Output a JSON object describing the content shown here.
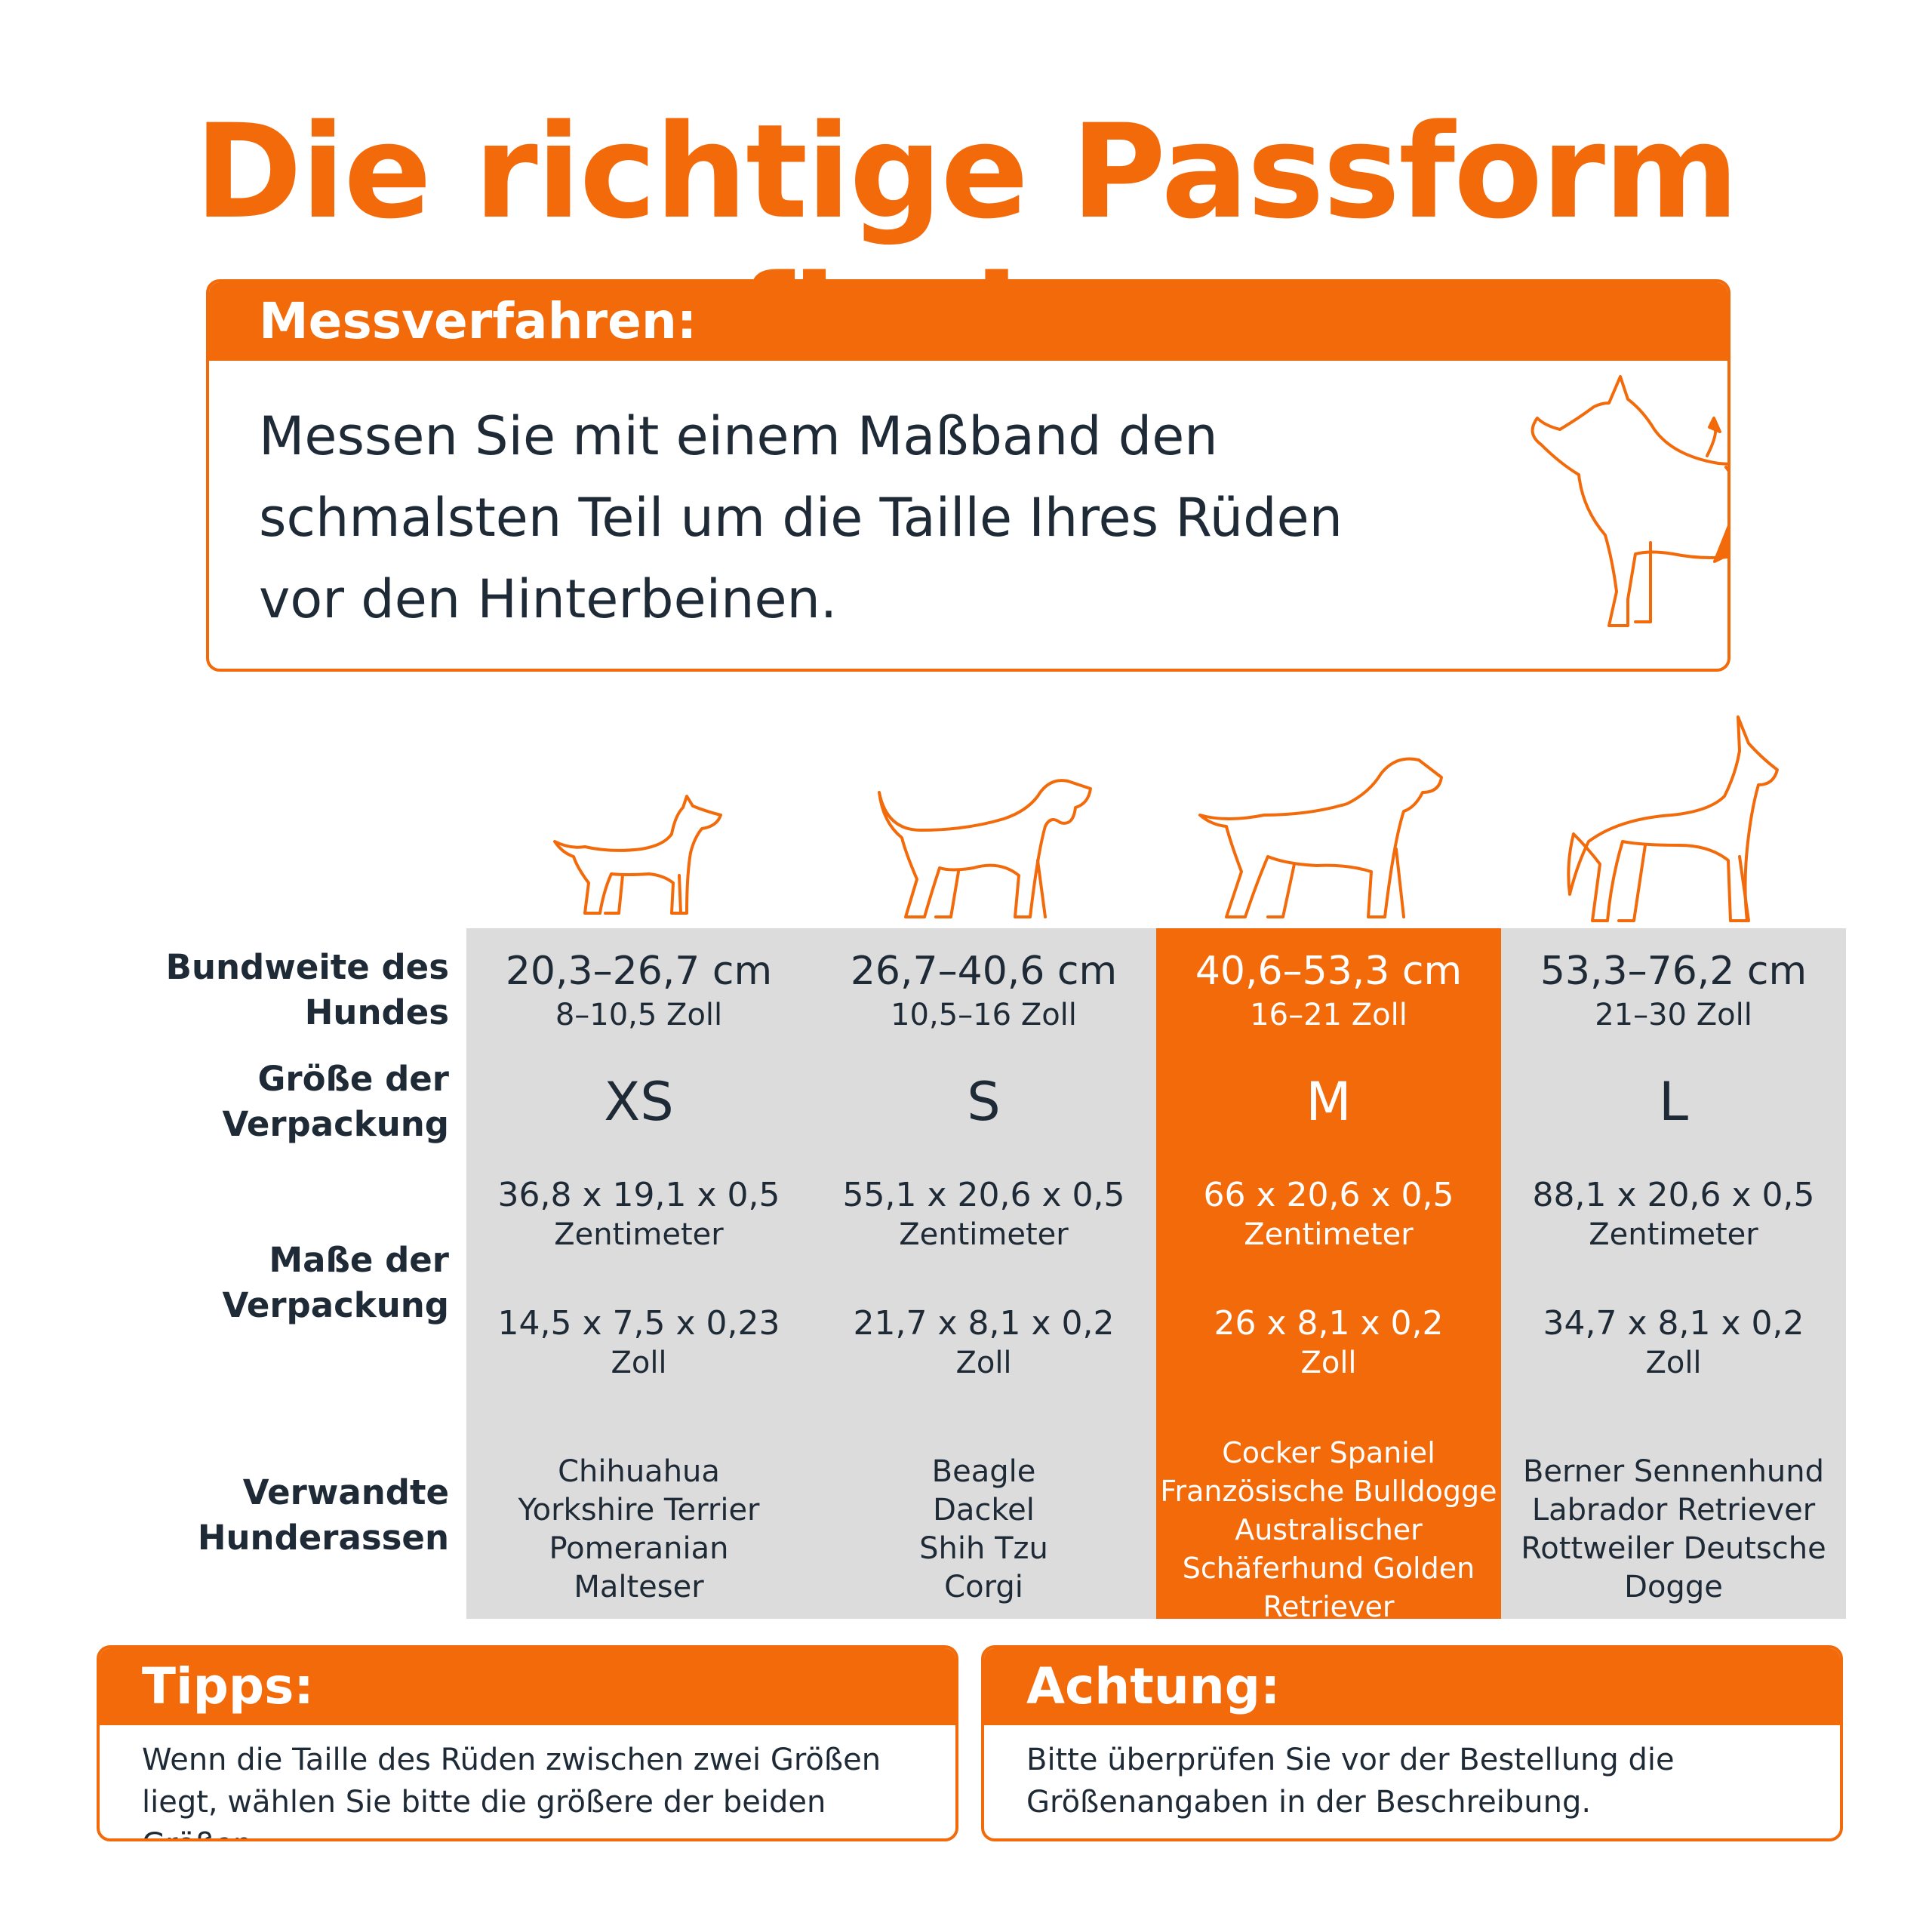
{
  "title": "Die richtige Passform finden",
  "measure": {
    "heading": "Messverfahren:",
    "lines": [
      "Messen Sie mit einem Maßband den",
      "schmalsten Teil um die Taille Ihres Rüden",
      "vor den Hinterbeinen."
    ]
  },
  "row_labels": {
    "waist": [
      "Bundweite des",
      "Hundes"
    ],
    "package_size": [
      "Größe der",
      "Verpackung"
    ],
    "package_dims": [
      "Maße der",
      "Verpackung"
    ],
    "breeds": [
      "Verwandte",
      "Hunderassen"
    ]
  },
  "sizes": [
    {
      "waist_cm": "20,3–26,7 cm",
      "waist_in": "8–10,5 Zoll",
      "size": "XS",
      "dims_cm": "36,8 x 19,1 x 0,5",
      "unit_cm": "Zentimeter",
      "dims_in": "14,5 x 7,5 x 0,23",
      "unit_in": "Zoll",
      "breeds": [
        "Chihuahua",
        "Yorkshire Terrier",
        "Pomeranian",
        "Malteser"
      ]
    },
    {
      "waist_cm": "26,7–40,6 cm",
      "waist_in": "10,5–16 Zoll",
      "size": "S",
      "dims_cm": "55,1 x 20,6 x 0,5",
      "unit_cm": "Zentimeter",
      "dims_in": "21,7 x 8,1 x 0,2",
      "unit_in": "Zoll",
      "breeds": [
        "Beagle",
        "Dackel",
        "Shih Tzu",
        "Corgi"
      ]
    },
    {
      "waist_cm": "40,6–53,3 cm",
      "waist_in": "16–21 Zoll",
      "size": "M",
      "dims_cm": "66 x 20,6 x 0,5",
      "unit_cm": "Zentimeter",
      "dims_in": "26 x 8,1 x 0,2",
      "unit_in": "Zoll",
      "breeds": [
        "Cocker Spaniel",
        "Französische Bulldogge",
        "Australischer",
        "Schäferhund Golden",
        "Retriever"
      ]
    },
    {
      "waist_cm": "53,3–76,2 cm",
      "waist_in": "21–30 Zoll",
      "size": "L",
      "dims_cm": "88,1 x 20,6 x 0,5",
      "unit_cm": "Zentimeter",
      "dims_in": "34,7 x 8,1 x 0,2",
      "unit_in": "Zoll",
      "breeds": [
        "Berner Sennenhund",
        "Labrador Retriever",
        "Rottweiler Deutsche",
        "Dogge"
      ]
    }
  ],
  "tips": {
    "heading": "Tipps:",
    "lines": [
      "Wenn die Taille des Rüden zwischen zwei Größen",
      "liegt, wählen Sie bitte die größere der beiden Größen."
    ]
  },
  "warning": {
    "heading": "Achtung:",
    "lines": [
      "Bitte überprüfen Sie vor der Bestellung die",
      "Größenangaben in der Beschreibung."
    ]
  },
  "colors": {
    "accent": "#f26a0a",
    "grey": "#dcdcdc",
    "text": "#1f2a37"
  },
  "icons": [
    "dog-measuring-icon",
    "small-dog-icon",
    "beagle-icon",
    "retriever-icon",
    "great-dane-icon"
  ]
}
